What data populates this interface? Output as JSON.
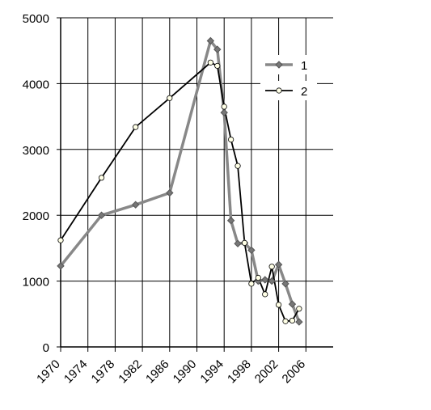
{
  "chart_data": {
    "type": "line",
    "x": [
      1970,
      1976,
      1981,
      1986,
      1992,
      1993,
      1994,
      1995,
      1996,
      1997,
      1998,
      1999,
      2000,
      2001,
      2002,
      2003,
      2004,
      2005
    ],
    "series": [
      {
        "name": "1",
        "color": "#888888",
        "values": [
          1230,
          2000,
          2160,
          2340,
          4650,
          4520,
          3560,
          1920,
          1570,
          1580,
          1470,
          1000,
          1020,
          1000,
          1250,
          960,
          650,
          380
        ]
      },
      {
        "name": "2",
        "color": "#000000",
        "values": [
          1620,
          2570,
          3340,
          3780,
          4320,
          4270,
          3650,
          3150,
          2750,
          1580,
          960,
          1050,
          800,
          1220,
          640,
          390,
          400,
          580
        ]
      }
    ],
    "xlim": [
      1970,
      2010
    ],
    "xticks": [
      1970,
      1974,
      1978,
      1982,
      1986,
      1990,
      1994,
      1998,
      2002,
      2006
    ],
    "ylim": [
      0,
      5000
    ],
    "yticks": [
      0,
      1000,
      2000,
      3000,
      4000,
      5000
    ],
    "grid": true,
    "legend": "upper right"
  }
}
